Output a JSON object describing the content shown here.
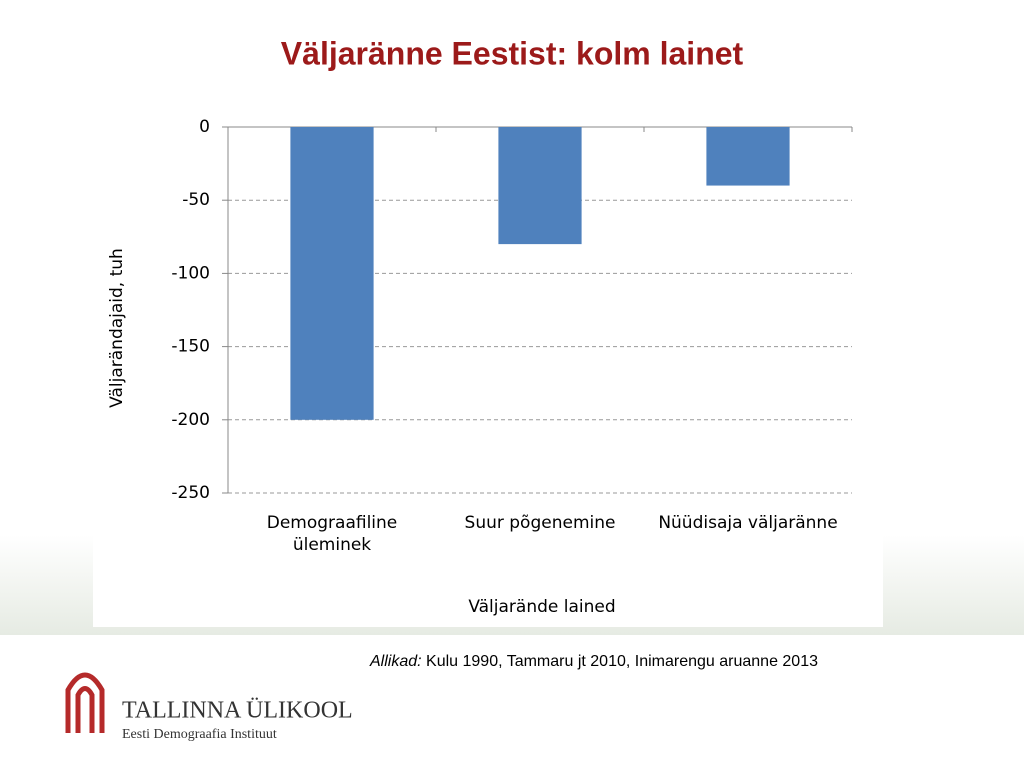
{
  "chart_data": {
    "type": "bar",
    "title": "Väljaränne Eestist: kolm lainet",
    "categories": [
      "Demograafiline üleminek",
      "Suur põgenemine",
      "Nüüdisaja väljaränne"
    ],
    "values": [
      -200,
      -80,
      -40
    ],
    "color": "#4f81bd",
    "ylim": [
      -250,
      0
    ],
    "yticks": [
      0,
      -50,
      -100,
      -150,
      -200,
      -250
    ],
    "grid": true,
    "y_label": "Väljarändajaid, tuh",
    "x_label": "Väljarände lained"
  },
  "slide": {
    "source_label": "Allikad:",
    "source": "Kulu 1990, Tammaru jt 2010, Inimarengu aruanne 2013",
    "logo_title": "TALLINNA ÜLIKOOL",
    "logo_subtitle": "Eesti Demograafia Instituut"
  }
}
